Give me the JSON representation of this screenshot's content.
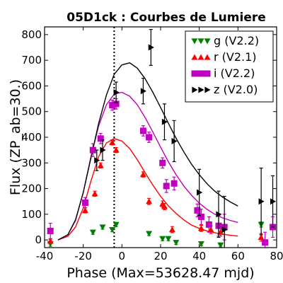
{
  "chart_data": {
    "type": "scatter",
    "title": "05D1ck : Courbes de Lumiere",
    "xlabel": "Phase (Max=53628.47 mjd)",
    "ylabel": "Flux (ZP_ab=30.)",
    "xlim": [
      -40,
      80
    ],
    "ylim": [
      -30,
      830
    ],
    "xticks": [
      -40,
      -20,
      0,
      20,
      40,
      60,
      80
    ],
    "yticks": [
      0,
      100,
      200,
      300,
      400,
      500,
      600,
      700,
      800
    ],
    "max_phase_line": -4,
    "legend": {
      "placement": "top-right"
    },
    "series": [
      {
        "name": "g (V2.2)",
        "color": "#008000",
        "marker": "triangle-down",
        "points": [
          {
            "x": -37,
            "y": -15,
            "e": 10
          },
          {
            "x": -15,
            "y": 30,
            "e": 8
          },
          {
            "x": -10,
            "y": 50,
            "e": 8
          },
          {
            "x": -5,
            "y": 40,
            "e": 8
          },
          {
            "x": -3,
            "y": 60,
            "e": 8
          },
          {
            "x": 14,
            "y": 25,
            "e": 8
          },
          {
            "x": 21,
            "y": 5,
            "e": 8
          },
          {
            "x": 24,
            "y": 5,
            "e": 8
          },
          {
            "x": 28,
            "y": -10,
            "e": 8
          },
          {
            "x": 41,
            "y": -15,
            "e": 8
          },
          {
            "x": 51,
            "y": -20,
            "e": 8
          },
          {
            "x": 72,
            "y": 60,
            "e": 10
          }
        ]
      },
      {
        "name": "r (V2.1)",
        "color": "#ff0000",
        "marker": "triangle-up",
        "points": [
          {
            "x": -37,
            "y": -5,
            "e": 8
          },
          {
            "x": -19,
            "y": 115,
            "e": 10
          },
          {
            "x": -14,
            "y": 180,
            "e": 10
          },
          {
            "x": -11,
            "y": 290,
            "e": 10
          },
          {
            "x": -5,
            "y": 380,
            "e": 10
          },
          {
            "x": -3,
            "y": 350,
            "e": 10
          },
          {
            "x": 11,
            "y": 255,
            "e": 10
          },
          {
            "x": 14,
            "y": 150,
            "e": 12
          },
          {
            "x": 21,
            "y": 140,
            "e": 12
          },
          {
            "x": 22,
            "y": 130,
            "e": 12
          },
          {
            "x": 26,
            "y": 40,
            "e": 12
          },
          {
            "x": 41,
            "y": 45,
            "e": 12
          },
          {
            "x": 46,
            "y": 40,
            "e": 15
          },
          {
            "x": 51,
            "y": 30,
            "e": 15
          },
          {
            "x": 72,
            "y": 10,
            "e": 15
          }
        ]
      },
      {
        "name": "i (V2.2)",
        "color": "#bf00bf",
        "marker": "square",
        "points": [
          {
            "x": -37,
            "y": 35,
            "e": 30
          },
          {
            "x": -19,
            "y": 145,
            "e": 20
          },
          {
            "x": -15,
            "y": 350,
            "e": 25
          },
          {
            "x": -11,
            "y": 395,
            "e": 20
          },
          {
            "x": -5,
            "y": 525,
            "e": 20
          },
          {
            "x": -3,
            "y": 530,
            "e": 20
          },
          {
            "x": 11,
            "y": 425,
            "e": 20
          },
          {
            "x": 14,
            "y": 400,
            "e": 20
          },
          {
            "x": 21,
            "y": 300,
            "e": 20
          },
          {
            "x": 23,
            "y": 210,
            "e": 25
          },
          {
            "x": 27,
            "y": 220,
            "e": 25
          },
          {
            "x": 39,
            "y": 115,
            "e": 25
          },
          {
            "x": 41,
            "y": 90,
            "e": 30
          },
          {
            "x": 45,
            "y": 60,
            "e": 30
          },
          {
            "x": 50,
            "y": 55,
            "e": 40
          },
          {
            "x": 53,
            "y": 50,
            "e": 50
          },
          {
            "x": 74,
            "y": -10,
            "e": 40
          },
          {
            "x": 78,
            "y": 50,
            "e": 40
          }
        ]
      },
      {
        "name": "z (V2.0)",
        "color": "#000000",
        "marker": "triangle-right",
        "points": [
          {
            "x": -13,
            "y": 310,
            "e": 40
          },
          {
            "x": -10,
            "y": 350,
            "e": 40
          },
          {
            "x": -3,
            "y": 575,
            "e": 40
          },
          {
            "x": 11,
            "y": 580,
            "e": 50
          },
          {
            "x": 15,
            "y": 750,
            "e": 70
          },
          {
            "x": 22,
            "y": 460,
            "e": 70
          },
          {
            "x": 27,
            "y": 385,
            "e": 80
          },
          {
            "x": 40,
            "y": 185,
            "e": 90
          },
          {
            "x": 50,
            "y": 100,
            "e": 90
          },
          {
            "x": 53,
            "y": 40,
            "e": 130
          },
          {
            "x": 72,
            "y": 150,
            "e": 130
          },
          {
            "x": 78,
            "y": 150,
            "e": 100
          }
        ]
      }
    ],
    "fit_curves": [
      {
        "band": "r",
        "color": "#ff0000",
        "points": [
          [
            -33,
            0
          ],
          [
            -28,
            14
          ],
          [
            -24,
            50
          ],
          [
            -20,
            125
          ],
          [
            -16,
            230
          ],
          [
            -12,
            325
          ],
          [
            -8,
            378
          ],
          [
            -4,
            395
          ],
          [
            0,
            385
          ],
          [
            4,
            356
          ],
          [
            8,
            312
          ],
          [
            12,
            262
          ],
          [
            16,
            213
          ],
          [
            20,
            170
          ],
          [
            24,
            133
          ],
          [
            28,
            103
          ],
          [
            32,
            78
          ],
          [
            36,
            58
          ],
          [
            40,
            45
          ],
          [
            44,
            35
          ],
          [
            48,
            28
          ],
          [
            52,
            22
          ],
          [
            56,
            18
          ],
          [
            60,
            15
          ]
        ]
      },
      {
        "band": "i",
        "color": "#bf00bf",
        "points": [
          [
            -33,
            0
          ],
          [
            -28,
            20
          ],
          [
            -24,
            75
          ],
          [
            -20,
            185
          ],
          [
            -16,
            325
          ],
          [
            -12,
            445
          ],
          [
            -8,
            527
          ],
          [
            -4,
            568
          ],
          [
            0,
            575
          ],
          [
            4,
            560
          ],
          [
            8,
            526
          ],
          [
            12,
            477
          ],
          [
            16,
            420
          ],
          [
            20,
            361
          ],
          [
            24,
            305
          ],
          [
            28,
            254
          ],
          [
            32,
            210
          ],
          [
            36,
            174
          ],
          [
            40,
            143
          ],
          [
            44,
            119
          ],
          [
            48,
            100
          ],
          [
            52,
            86
          ],
          [
            56,
            76
          ],
          [
            60,
            68
          ]
        ]
      },
      {
        "band": "z",
        "color": "#000000",
        "points": [
          [
            -33,
            0
          ],
          [
            -28,
            20
          ],
          [
            -24,
            78
          ],
          [
            -20,
            185
          ],
          [
            -16,
            320
          ],
          [
            -12,
            455
          ],
          [
            -8,
            565
          ],
          [
            -4,
            645
          ],
          [
            0,
            682
          ],
          [
            4,
            690
          ],
          [
            8,
            669
          ],
          [
            12,
            628
          ],
          [
            16,
            575
          ],
          [
            20,
            516
          ],
          [
            24,
            455
          ],
          [
            28,
            396
          ],
          [
            32,
            343
          ],
          [
            36,
            295
          ],
          [
            40,
            254
          ],
          [
            44,
            219
          ],
          [
            48,
            190
          ],
          [
            52,
            167
          ],
          [
            56,
            148
          ],
          [
            60,
            132
          ]
        ]
      }
    ]
  }
}
